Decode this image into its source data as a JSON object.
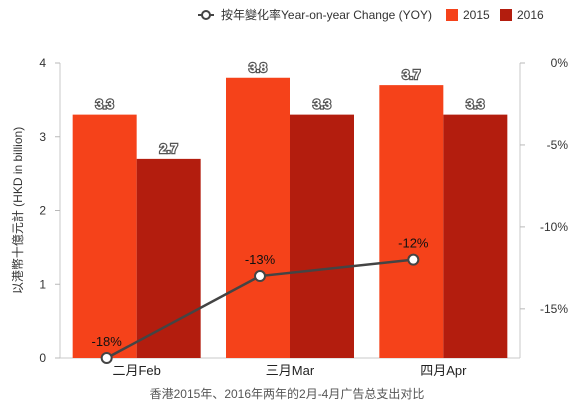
{
  "chart_data": {
    "type": "bar",
    "caption": "香港2015年、2016年两年的2月-4月广告总支出对比",
    "ylabel": "以港幣十億元計 (HKD in billion)",
    "ylim": [
      0,
      4
    ],
    "yticks": [
      "0",
      "1",
      "2",
      "3",
      "4"
    ],
    "y2lim": [
      -18,
      0
    ],
    "y2ticks": [
      "0%",
      "-5%",
      "-10%",
      "-15%"
    ],
    "categories": [
      "二月Feb",
      "三月Mar",
      "四月Apr"
    ],
    "series": [
      {
        "name": "2015",
        "type": "bar",
        "color": "#f5421a",
        "values": [
          3.3,
          3.8,
          3.7
        ],
        "labels": [
          "3.3",
          "3.8",
          "3.7"
        ]
      },
      {
        "name": "2016",
        "type": "bar",
        "color": "#b31d0e",
        "values": [
          2.7,
          3.3,
          3.3
        ],
        "labels": [
          "2.7",
          "3.3",
          "3.3"
        ]
      },
      {
        "name": "按年變化率Year-on-year Change (YOY)",
        "type": "line",
        "axis": "right",
        "color": "#444444",
        "values": [
          -18,
          -13,
          -12
        ],
        "labels": [
          "-18%",
          "-13%",
          "-12%"
        ]
      }
    ],
    "legend": "top-right",
    "grid": false
  }
}
